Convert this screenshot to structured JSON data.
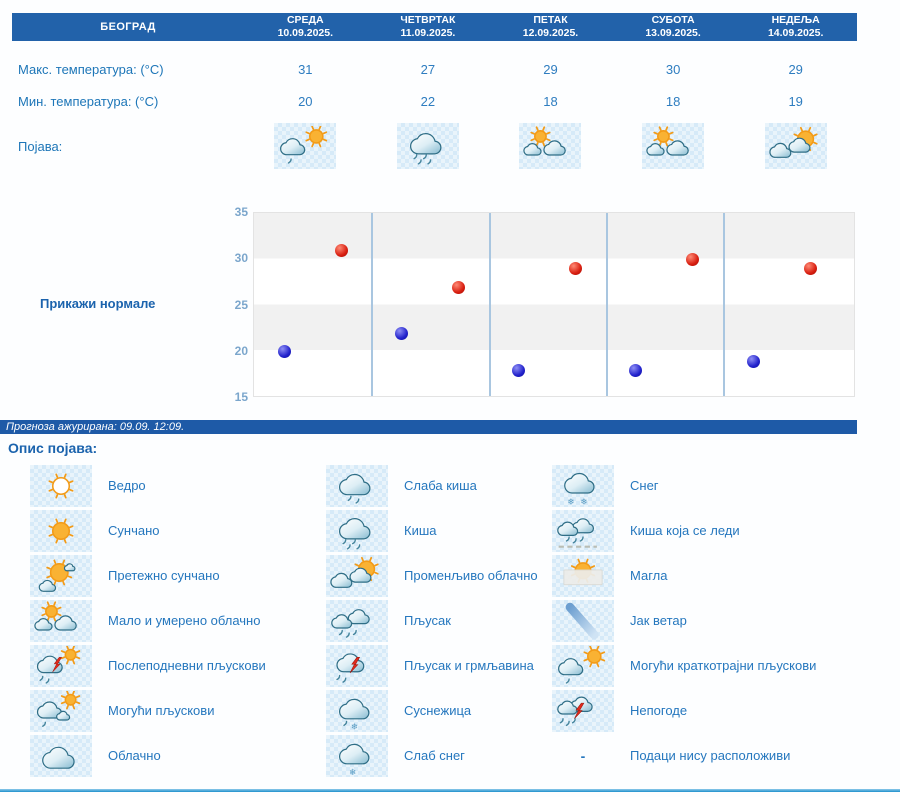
{
  "header": {
    "location": "БЕОГРАД",
    "days": [
      {
        "name": "СРЕДА",
        "date": "10.09.2025."
      },
      {
        "name": "ЧЕТВРТАК",
        "date": "11.09.2025."
      },
      {
        "name": "ПЕТАК",
        "date": "12.09.2025."
      },
      {
        "name": "СУБОТА",
        "date": "13.09.2025."
      },
      {
        "name": "НЕДЕЉА",
        "date": "14.09.2025."
      }
    ]
  },
  "table": {
    "max_label": "Макс. температура: (°C)",
    "min_label": "Мин. температура: (°C)",
    "phenomena_label": "Појава:",
    "max_values": [
      31,
      27,
      29,
      30,
      29
    ],
    "min_values": [
      20,
      22,
      18,
      18,
      19
    ],
    "phenomena_icons": [
      "possible-short-showers-icon",
      "rain-icon",
      "partly-cloudy-icon",
      "partly-cloudy-icon",
      "variable-cloudy-icon"
    ]
  },
  "chart": {
    "show_normals_label": "Прикажи нормале"
  },
  "chart_data": {
    "type": "scatter",
    "title": "",
    "x_categories": [
      "СРЕДА 10.09.2025.",
      "ЧЕТВРТАК 11.09.2025.",
      "ПЕТАК 12.09.2025.",
      "СУБОТА 13.09.2025.",
      "НЕДЕЉА 14.09.2025."
    ],
    "series": [
      {
        "name": "Мин. температура (°C)",
        "color": "#2222cc",
        "values": [
          20,
          22,
          18,
          18,
          19
        ]
      },
      {
        "name": "Макс. температура (°C)",
        "color": "#d81e10",
        "values": [
          31,
          27,
          29,
          30,
          29
        ]
      }
    ],
    "ylim": [
      15,
      35
    ],
    "yticks": [
      35,
      30,
      25,
      20,
      15
    ],
    "grid": "horizontal-bands-alternating",
    "legend_position": "none"
  },
  "update_bar": {
    "text": "Прогноза ажурирана:  09.09. 12:09."
  },
  "legend": {
    "title": "Опис појава:",
    "columns": [
      {
        "items": [
          {
            "icon": "clear-icon",
            "label": "Ведро"
          },
          {
            "icon": "sunny-icon",
            "label": "Сунчано"
          },
          {
            "icon": "mostly-sunny-icon",
            "label": "Претежно сунчано"
          },
          {
            "icon": "partly-cloudy-icon",
            "label": "Мало и умерено облачно"
          },
          {
            "icon": "afternoon-showers-icon",
            "label": "Послеподневни пљускови"
          },
          {
            "icon": "possible-showers-icon",
            "label": "Могући пљускови"
          },
          {
            "icon": "cloudy-icon",
            "label": "Облачно"
          }
        ]
      },
      {
        "items": [
          {
            "icon": "light-rain-icon",
            "label": "Слаба киша"
          },
          {
            "icon": "rain-icon",
            "label": "Киша"
          },
          {
            "icon": "variable-cloudy-icon",
            "label": "Променљиво облачно"
          },
          {
            "icon": "shower-icon",
            "label": "Пљусак"
          },
          {
            "icon": "shower-thunder-icon",
            "label": "Пљусак и грмљавина"
          },
          {
            "icon": "sleet-icon",
            "label": "Суснежица"
          },
          {
            "icon": "light-snow-icon",
            "label": "Слаб снег"
          }
        ]
      },
      {
        "items": [
          {
            "icon": "snow-icon",
            "label": "Снег"
          },
          {
            "icon": "freezing-rain-icon",
            "label": "Киша која се леди"
          },
          {
            "icon": "fog-icon",
            "label": "Магла"
          },
          {
            "icon": "strong-wind-icon",
            "label": "Јак ветар"
          },
          {
            "icon": "possible-short-showers-icon",
            "label": "Могући краткотрајни пљускови"
          },
          {
            "icon": "storms-icon",
            "label": "Непогоде"
          },
          {
            "icon": "dash",
            "dash": "-",
            "label": "Подаци нису расположиви"
          }
        ]
      }
    ]
  },
  "colors": {
    "header_bar": "#2262aa",
    "update_bar": "#1e5aa7",
    "label_text": "#1d76b8",
    "legend_text": "#2577be",
    "min_point": "#2222cc",
    "max_point": "#d81e10",
    "day_separator": "#a9c6e0",
    "bottom_line": "#1d8fcc"
  }
}
